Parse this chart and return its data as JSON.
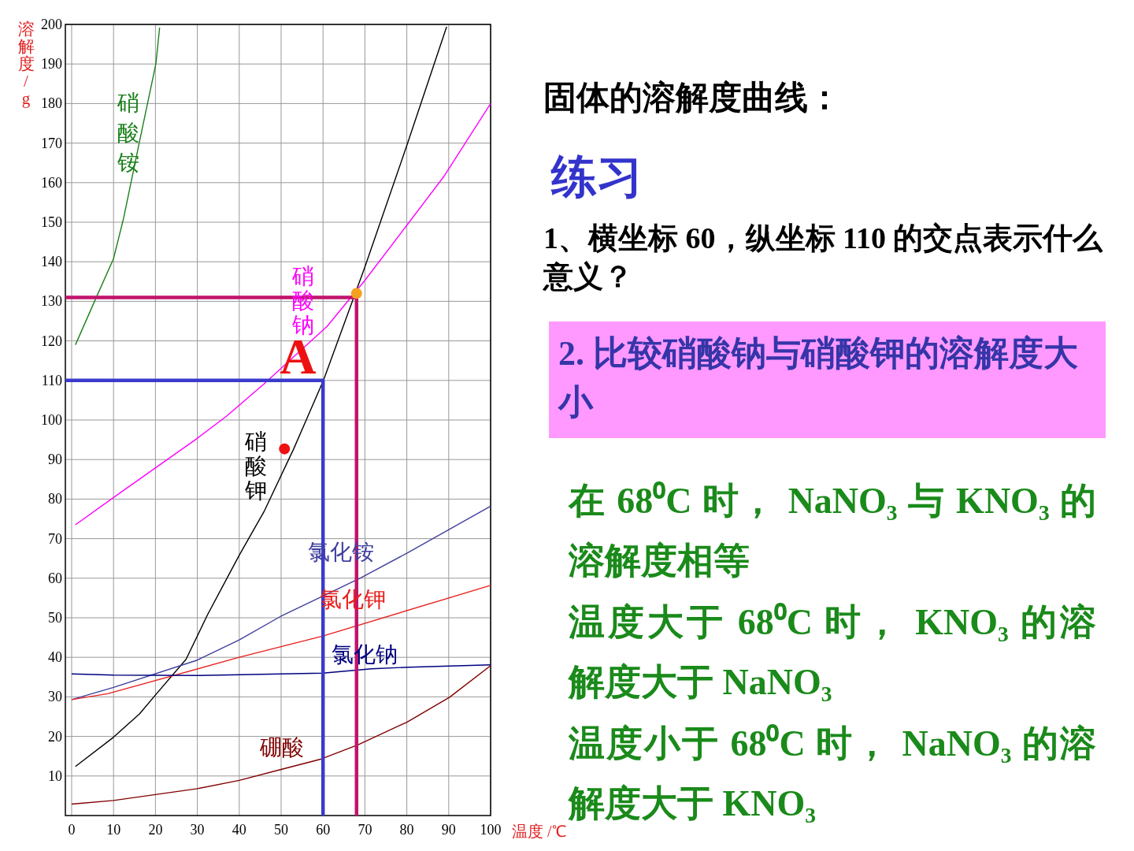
{
  "chart_data": {
    "type": "line",
    "title": "固体的溶解度曲线：",
    "subtitle": "练习",
    "xlabel": "温度 /℃",
    "ylabel": "溶解度/g",
    "xlim": [
      -1.5,
      100
    ],
    "ylim": [
      0,
      200
    ],
    "xticks": [
      0,
      10,
      20,
      30,
      40,
      50,
      60,
      70,
      80,
      90,
      100
    ],
    "yticks": [
      10,
      20,
      30,
      40,
      50,
      60,
      70,
      80,
      90,
      100,
      110,
      120,
      130,
      140,
      150,
      160,
      170,
      180,
      190,
      200
    ],
    "grid": true,
    "series": [
      {
        "name": "硝酸铵",
        "color": "#1a801a",
        "x": [
          0.9,
          5.8,
          10,
          12.4,
          16,
          20.1,
          21
        ],
        "values": [
          119,
          130.8,
          140.8,
          151,
          169.4,
          190,
          199.2
        ]
      },
      {
        "name": "硝酸钠",
        "color": "#ff00ff",
        "x": [
          0.9,
          10,
          29.9,
          37,
          45.8,
          61,
          70,
          80.2,
          88.8,
          100
        ],
        "values": [
          73.5,
          80.4,
          95.3,
          101,
          109,
          123.7,
          135.3,
          149.5,
          161.5,
          180
        ]
      },
      {
        "name": "硝酸钾",
        "color": "#000000",
        "x": [
          0.9,
          10,
          16.2,
          20.1,
          27.3,
          32.5,
          40,
          45.9,
          53,
          56.4,
          60.1,
          70,
          80.2,
          89.5
        ],
        "values": [
          12.4,
          19.8,
          25.7,
          30.6,
          39.5,
          50.9,
          65.8,
          76.8,
          92.7,
          101,
          110,
          138.7,
          170,
          199.4
        ]
      },
      {
        "name": "氯化铵",
        "color": "#3f3f9f",
        "x": [
          0,
          10,
          30,
          40,
          49.8,
          69,
          80.5,
          100
        ],
        "values": [
          29.3,
          32.4,
          39.3,
          44.4,
          50.3,
          60.1,
          66.6,
          78.2
        ]
      },
      {
        "name": "氯化钾",
        "color": "#e8201e",
        "x": [
          0,
          8.6,
          40,
          60,
          100
        ],
        "values": [
          29.3,
          30.8,
          40,
          45.4,
          58.2
        ]
      },
      {
        "name": "氯化钠",
        "color": "#000080",
        "x": [
          0,
          10,
          30,
          60,
          71.6,
          80.5,
          100
        ],
        "values": [
          35.8,
          35.5,
          35.4,
          36,
          37.1,
          37.5,
          38.1
        ]
      },
      {
        "name": "硼酸",
        "color": "#800000",
        "x": [
          0,
          10,
          30,
          40,
          49.8,
          59.6,
          68.4,
          80,
          90.2,
          100
        ],
        "values": [
          2.9,
          3.8,
          6.8,
          8.9,
          11.6,
          14.3,
          17.9,
          23.6,
          29.9,
          37.9
        ]
      },
      {
        "color": "#3a3acc",
        "x": [
          -1.5,
          60,
          60
        ],
        "values": [
          110,
          110,
          0
        ]
      },
      {
        "color": "#c0146c",
        "x": [
          -1.5,
          68,
          68
        ],
        "values": [
          131,
          131,
          0
        ]
      },
      {
        "type": "scatter",
        "color": "#f5a020",
        "x": [
          68
        ],
        "values": [
          132
        ]
      },
      {
        "type": "scatter",
        "color": "#ee1111",
        "x": [
          50.8
        ],
        "values": [
          92.7
        ]
      }
    ],
    "annotations": [
      "1、横坐标 60，纵坐标 110  的交点表示什么意义？",
      "2. 比较硝酸钠与硝酸钾的溶解度大小",
      "在 68⁰C 时， NaNO₃ 与 KNO₃ 的溶解度相等",
      "温度大于 68⁰C 时， KNO₃ 的溶解度大于 NaNO₃",
      "温度小于 68⁰C 时， NaNO₃ 的溶解度大于 KNO₃",
      {
        "text": "A",
        "x": 54,
        "y": 116
      }
    ]
  }
}
